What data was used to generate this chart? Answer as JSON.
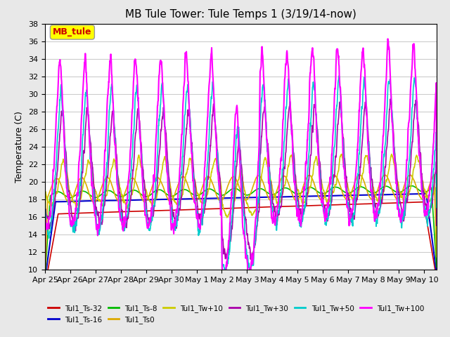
{
  "title": "MB Tule Tower: Tule Temps 1 (3/19/14-now)",
  "ylabel": "Temperature (C)",
  "ylim": [
    10,
    38
  ],
  "yticks": [
    10,
    12,
    14,
    16,
    18,
    20,
    22,
    24,
    26,
    28,
    30,
    32,
    34,
    36,
    38
  ],
  "xlabel_dates": [
    "Apr 25",
    "Apr 26",
    "Apr 27",
    "Apr 28",
    "Apr 29",
    "Apr 30",
    "May 1",
    "May 2",
    "May 3",
    "May 4",
    "May 5",
    "May 6",
    "May 7",
    "May 8",
    "May 9",
    "May 10"
  ],
  "annotation_box": "MB_tule",
  "annotation_box_color": "#ffff00",
  "annotation_box_text_color": "#cc0000",
  "series": {
    "Tul1_Ts-32": {
      "color": "#cc0000",
      "lw": 1.2
    },
    "Tul1_Ts-16": {
      "color": "#0000cc",
      "lw": 1.5
    },
    "Tul1_Ts-8": {
      "color": "#00bb00",
      "lw": 1.2
    },
    "Tul1_Ts0": {
      "color": "#ddaa00",
      "lw": 1.2
    },
    "Tul1_Tw+10": {
      "color": "#cccc00",
      "lw": 1.2
    },
    "Tul1_Tw+30": {
      "color": "#aa00aa",
      "lw": 1.2
    },
    "Tul1_Tw+50": {
      "color": "#00cccc",
      "lw": 1.2
    },
    "Tul1_Tw+100": {
      "color": "#ff00ff",
      "lw": 1.5
    }
  },
  "legend_order": [
    "Tul1_Ts-32",
    "Tul1_Ts-16",
    "Tul1_Ts-8",
    "Tul1_Ts0",
    "Tul1_Tw+10",
    "Tul1_Tw+30",
    "Tul1_Tw+50",
    "Tul1_Tw+100"
  ],
  "bg_color": "#e8e8e8",
  "plot_bg": "#ffffff",
  "grid_color": "#cccccc",
  "figwidth": 6.4,
  "figheight": 4.8,
  "dpi": 100
}
